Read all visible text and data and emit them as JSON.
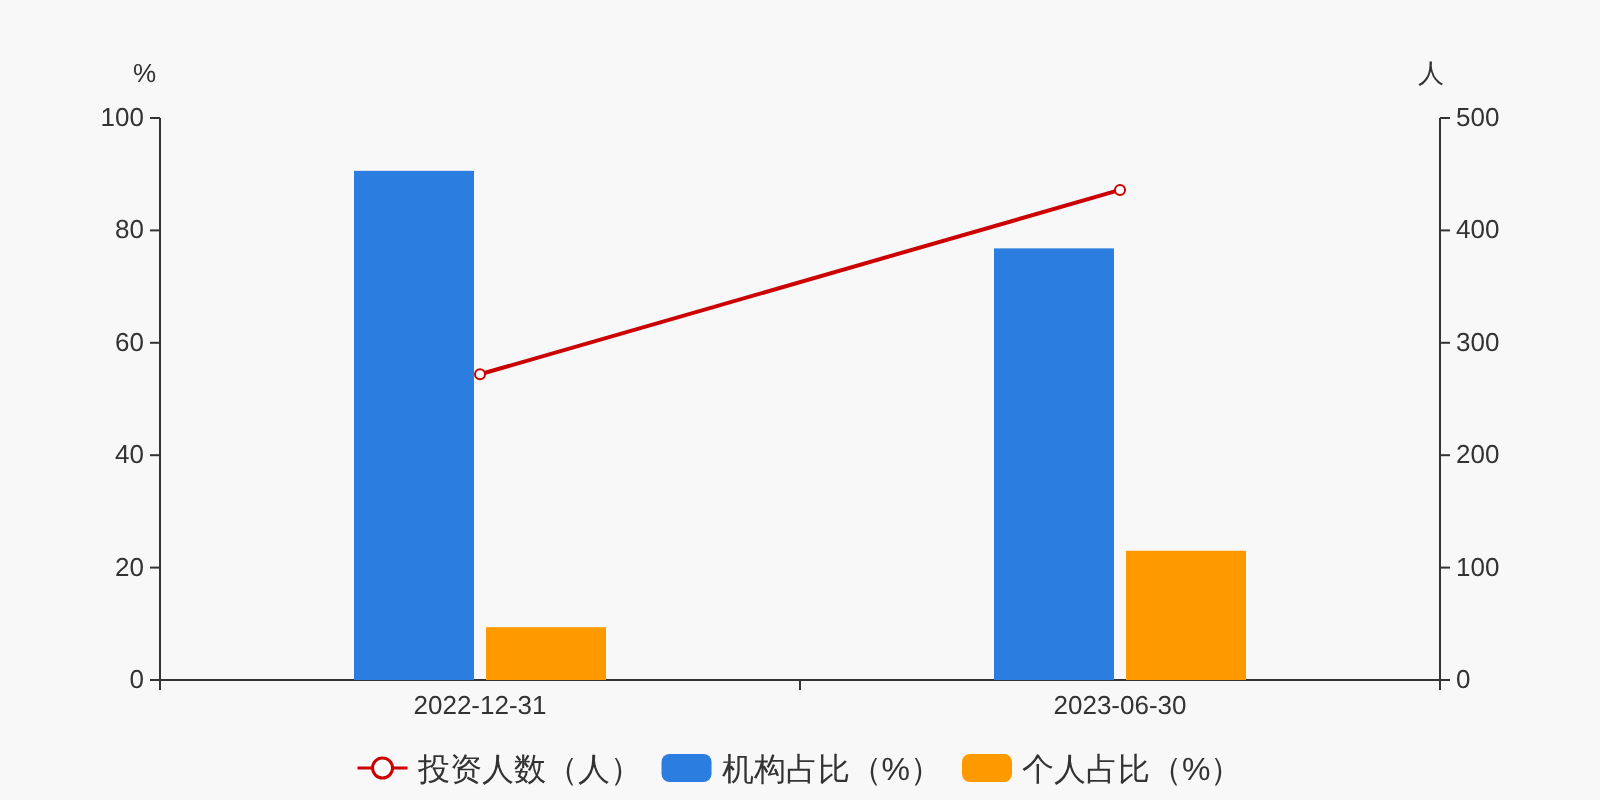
{
  "chart_data": {
    "type": "bar",
    "ylabel": "%",
    "y2label": "人",
    "categories": [
      "2022-12-31",
      "2023-06-30"
    ],
    "series": [
      {
        "name": "投资人数（人）",
        "type": "line",
        "axis": "y2",
        "color": "#cc0000",
        "marker": "circle",
        "values": [
          272,
          436
        ]
      },
      {
        "name": "机构占比（%）",
        "color": "#2b7ddf",
        "values": [
          90.6,
          76.8
        ]
      },
      {
        "name": "个人占比（%）",
        "color": "#ff9900",
        "values": [
          9.4,
          23.0
        ]
      }
    ],
    "ylim": [
      0,
      100
    ],
    "yticks": [
      0,
      20,
      40,
      60,
      80,
      100
    ],
    "y2lim": [
      0,
      500
    ],
    "y2ticks": [
      0,
      100,
      200,
      300,
      400,
      500
    ],
    "legend": "bottom"
  }
}
